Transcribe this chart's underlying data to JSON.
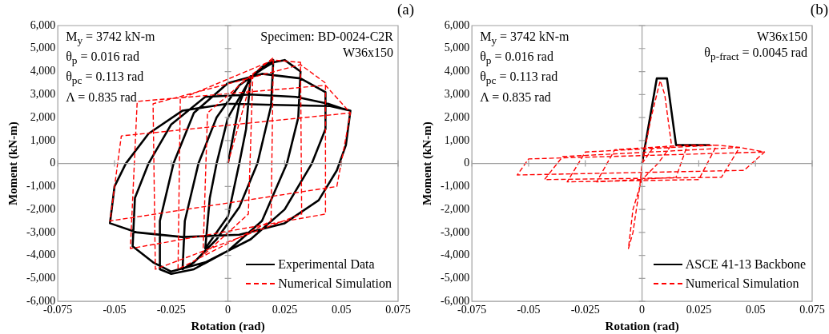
{
  "chart_data": [
    {
      "type": "line",
      "title": "(a)",
      "xlabel": "Rotation (rad)",
      "ylabel": "Moment (kN-m)",
      "xlim": [
        -0.075,
        0.075
      ],
      "xticks": [
        -0.075,
        -0.05,
        -0.025,
        0,
        0.025,
        0.05,
        0.075
      ],
      "ylim": [
        -6000,
        6000
      ],
      "yticks": [
        {
          "value": -6000,
          "label": "-6,000"
        },
        {
          "value": -5000,
          "label": "-5,000"
        },
        {
          "value": -4000,
          "label": "-4,000"
        },
        {
          "value": -3000,
          "label": "-3,000"
        },
        {
          "value": -2000,
          "label": "-2,000"
        },
        {
          "value": -1000,
          "label": "-1,000"
        },
        0,
        {
          "value": 1000,
          "label": "1,000"
        },
        {
          "value": 2000,
          "label": "2,000"
        },
        {
          "value": 3000,
          "label": "3,000"
        },
        {
          "value": 4000,
          "label": "4,000"
        },
        {
          "value": 5000,
          "label": "5,000"
        },
        {
          "value": 6000,
          "label": "6,000"
        }
      ],
      "legend": "bottom right",
      "marker": "none",
      "annotations": [
        "M$_{y}$ = 3742 kN-m\nθ$_{p}$ = 0.016 rad\nθ$_{pc}$ = 0.113 rad\nΛ = 0.835 rad",
        "Specimen: BD-0024-C2R\nW36x150"
      ],
      "series": [
        {
          "name": "Experimental Data",
          "color": "#000000",
          "line_style": "solid",
          "x": [
            0,
            0.005,
            0.01,
            0.008,
            0.005,
            0,
            -0.01,
            -0.008,
            -0.005,
            0,
            0.01,
            0.015,
            0.02,
            0.019,
            0.013,
            0.005,
            -0.005,
            -0.015,
            -0.02,
            -0.019,
            -0.013,
            -0.005,
            0.005,
            0.015,
            0.02,
            0.025,
            0.032,
            0.031,
            0.026,
            0.015,
            0,
            -0.015,
            -0.025,
            -0.03,
            -0.03,
            -0.024,
            -0.015,
            0,
            0.015,
            0.032,
            0.043,
            0.043,
            0.037,
            0.025,
            0.01,
            -0.01,
            -0.025,
            -0.033,
            -0.042,
            -0.041,
            -0.035,
            -0.025,
            -0.01,
            0.01,
            0.03,
            0.044,
            0.05,
            0.054,
            0.052,
            0.048,
            0.04,
            0.025,
            0.005,
            -0.02,
            -0.04,
            -0.052,
            -0.05,
            -0.045,
            -0.035,
            -0.02,
            0,
            0.02,
            0.045,
            0.054
          ],
          "values": [
            0,
            2600,
            3800,
            1500,
            0,
            -2300,
            -3700,
            -1500,
            0,
            2000,
            3700,
            4200,
            4500,
            2500,
            0,
            -1900,
            -3300,
            -4300,
            -4600,
            -2500,
            0,
            2000,
            3400,
            4100,
            4400,
            4500,
            4000,
            2000,
            0,
            -2500,
            -3800,
            -4600,
            -4800,
            -4600,
            -2500,
            0,
            2200,
            3500,
            3900,
            3700,
            3100,
            1500,
            0,
            -2000,
            -3300,
            -4300,
            -4700,
            -4300,
            -3600,
            -1500,
            0,
            1700,
            2900,
            3000,
            2900,
            2600,
            2400,
            2300,
            800,
            -300,
            -1600,
            -2600,
            -3100,
            -3200,
            -3000,
            -2600,
            -1000,
            0,
            1300,
            2300,
            2600,
            2550,
            2500,
            2300
          ]
        },
        {
          "name": "Numerical Simulation",
          "color": "#ff0000",
          "line_style": "dashed",
          "x": [
            0,
            0.011,
            0.009,
            -0.011,
            -0.009,
            0.011,
            0.02,
            0.019,
            -0.022,
            -0.021,
            0.02,
            0.032,
            0.0325,
            -0.032,
            -0.033,
            0.032,
            0.043,
            0.043,
            -0.043,
            -0.04,
            0.043,
            0.054,
            0.048,
            -0.052,
            -0.047,
            0.054
          ],
          "values": [
            0,
            3900,
            -2200,
            -4000,
            2200,
            3900,
            4600,
            -2500,
            -4600,
            2800,
            4500,
            4400,
            -2200,
            -4600,
            2600,
            4300,
            3500,
            -2200,
            -3700,
            2700,
            3400,
            2200,
            -1000,
            -2500,
            1200,
            2200
          ]
        }
      ]
    },
    {
      "type": "line",
      "title": "(b)",
      "xlabel": "Rotation (rad)",
      "ylabel": "Moment (kN-m)",
      "xlim": [
        -0.075,
        0.075
      ],
      "xticks": [
        -0.075,
        -0.05,
        -0.025,
        0,
        0.025,
        0.05,
        0.075
      ],
      "ylim": [
        -6000,
        6000
      ],
      "yticks": [
        {
          "value": -6000,
          "label": "-6,000"
        },
        {
          "value": -5000,
          "label": "-5,000"
        },
        {
          "value": -4000,
          "label": "-4,000"
        },
        {
          "value": -3000,
          "label": "-3,000"
        },
        {
          "value": -2000,
          "label": "-2,000"
        },
        {
          "value": -1000,
          "label": "-1,000"
        },
        0,
        {
          "value": 1000,
          "label": "1,000"
        },
        {
          "value": 2000,
          "label": "2,000"
        },
        {
          "value": 3000,
          "label": "3,000"
        },
        {
          "value": 4000,
          "label": "4,000"
        },
        {
          "value": 5000,
          "label": "5,000"
        },
        {
          "value": 6000,
          "label": "6,000"
        }
      ],
      "legend": "bottom right",
      "marker": "none",
      "annotations": [
        "M$_{y}$ = 3742 kN-m\nθ$_{p}$ = 0.016 rad\nθ$_{pc}$ = 0.113 rad\nΛ = 0.835 rad",
        "W36x150\nθ$_{p-fract}$ = 0.0045 rad"
      ],
      "series": [
        {
          "name": "ASCE 41-13 Backbone",
          "color": "#000000",
          "line_style": "solid",
          "x": [
            0,
            0.0065,
            0.011,
            0.015,
            0.03
          ],
          "values": [
            0,
            3700,
            3700,
            800,
            800
          ]
        },
        {
          "name": "Numerical Simulation",
          "color": "#ff0000",
          "line_style": "dashed",
          "x": [
            0,
            0.004,
            0.008,
            0.01,
            0.013,
            0.007,
            0,
            -0.004,
            -0.006,
            -0.004,
            -0.001,
            0,
            0.005,
            0.02,
            0.015,
            -0.02,
            -0.012,
            0.02,
            0.033,
            0.025,
            -0.033,
            -0.025,
            0.033,
            0.043,
            0.035,
            -0.043,
            -0.035,
            0.043,
            0.054,
            0.045,
            -0.055,
            -0.05,
            0.054
          ],
          "values": [
            0,
            2000,
            3600,
            3000,
            800,
            0,
            -700,
            -2000,
            -3700,
            -3000,
            -1000,
            0,
            700,
            800,
            -600,
            -800,
            600,
            800,
            800,
            -700,
            -800,
            500,
            800,
            700,
            -600,
            -700,
            300,
            700,
            500,
            -300,
            -500,
            200,
            500
          ]
        }
      ]
    }
  ]
}
